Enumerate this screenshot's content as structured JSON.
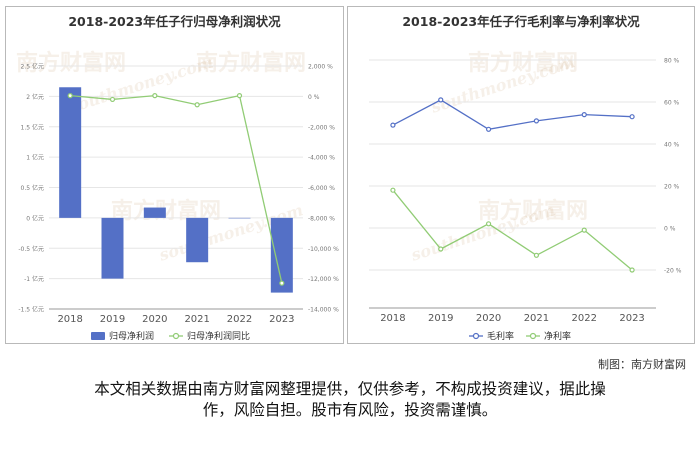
{
  "charts": [
    {
      "title": "2018-2023年任子行归母净利润状况"
    },
    {
      "title": "2018-2023年任子行毛利率与净利率状况"
    }
  ],
  "credit": "制图：南方财富网",
  "disclaimer_line1": "本文相关数据由南方财富网整理提供，仅供参考，不构成投资建议，据此操",
  "disclaimer_line2": "作，风险自担。股市有风险，投资需谨慎。",
  "watermark": "南方财富网",
  "watermark_url": "southmoney.com",
  "colors": {
    "bar": "#5470c6",
    "line_green": "#91cc75",
    "line_blue": "#5470c6"
  },
  "chart_data": [
    {
      "type": "bar",
      "title": "2018-2023年任子行归母净利润状况",
      "categories": [
        "2018",
        "2019",
        "2020",
        "2021",
        "2022",
        "2023"
      ],
      "y_left": {
        "ticks": [
          "2.5 亿元",
          "2 亿元",
          "1.5 亿元",
          "1 亿元",
          "0.5 亿元",
          "0 亿元",
          "-0.5 亿元",
          "-1 亿元",
          "-1.5 亿元"
        ],
        "ylim": [
          -1.5,
          2.5
        ]
      },
      "y_right": {
        "ticks": [
          "2,000 %",
          "0 %",
          "-2,000 %",
          "-4,000 %",
          "-6,000 %",
          "-8,000 %",
          "-10,000 %",
          "-12,000 %",
          "-14,000 %"
        ],
        "ylim": [
          -14000,
          2000
        ]
      },
      "series": [
        {
          "name": "归母净利润",
          "type": "bar",
          "axis": "left",
          "values": [
            2.15,
            -1.0,
            0.17,
            -0.73,
            0.0,
            -1.23
          ]
        },
        {
          "name": "归母净利润同比",
          "type": "line",
          "axis": "right",
          "values": [
            50,
            -200,
            50,
            -550,
            50,
            -12300
          ]
        }
      ],
      "legend": "bottom-center"
    },
    {
      "type": "line",
      "title": "2018-2023年任子行毛利率与净利率状况",
      "categories": [
        "2018",
        "2019",
        "2020",
        "2021",
        "2022",
        "2023"
      ],
      "y_right": {
        "ticks": [
          "80 %",
          "60 %",
          "40 %",
          "20 %",
          "0 %",
          "-20 %"
        ],
        "ylim": [
          -20,
          80
        ]
      },
      "series": [
        {
          "name": "毛利率",
          "values": [
            49,
            61,
            47,
            51,
            54,
            53
          ]
        },
        {
          "name": "净利率",
          "values": [
            18,
            -10,
            2,
            -13,
            -1,
            -20
          ]
        }
      ],
      "legend": "bottom-center"
    }
  ]
}
